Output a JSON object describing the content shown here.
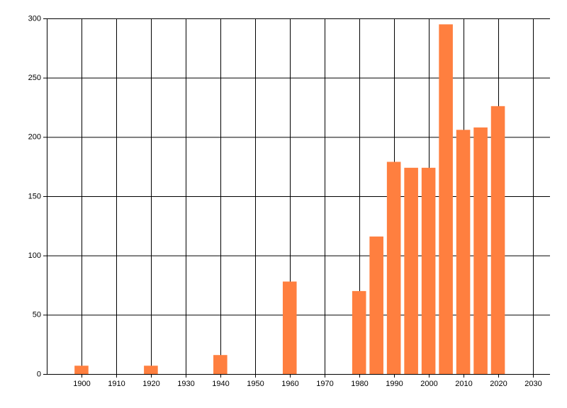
{
  "chart_data": {
    "type": "bar",
    "x": [
      1900,
      1920,
      1940,
      1960,
      1980,
      1985,
      1990,
      1995,
      2000,
      2005,
      2010,
      2015,
      2020
    ],
    "values": [
      7,
      7,
      16,
      78,
      70,
      116,
      179,
      174,
      174,
      295,
      206,
      208,
      226
    ],
    "color": "#ff7f3f",
    "xlim": [
      1890,
      2035
    ],
    "xticks": [
      1900,
      1910,
      1920,
      1930,
      1940,
      1950,
      1960,
      1970,
      1980,
      1990,
      2000,
      2010,
      2020,
      2030
    ],
    "ylim": [
      0,
      300
    ],
    "yticks": [
      0,
      50,
      100,
      150,
      200,
      250,
      300
    ],
    "grid": true
  }
}
